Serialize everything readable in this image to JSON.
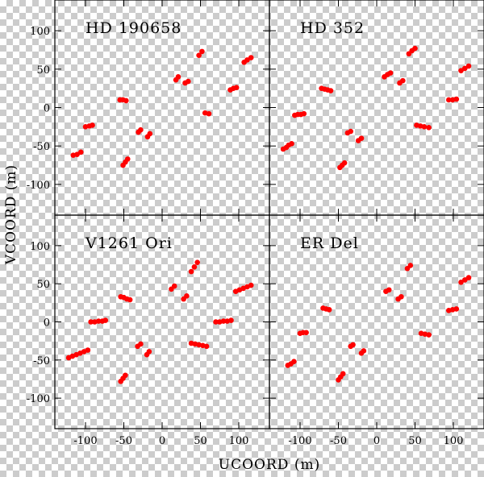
{
  "chart_data": {
    "type": "scatter",
    "xlabel": "UCOORD (m)",
    "ylabel": "VCOORD (m)",
    "xlim": [
      -140,
      140
    ],
    "ylim": [
      -140,
      140
    ],
    "xticks": [
      -100,
      -50,
      0,
      50,
      100
    ],
    "yticks": [
      -100,
      -50,
      0,
      50,
      100
    ],
    "marker_color": "#ff0000",
    "panels": [
      {
        "title": "HD 190658",
        "points": [
          [
            -116,
            -62
          ],
          [
            -111,
            -61
          ],
          [
            -106,
            -58
          ],
          [
            -100,
            -25
          ],
          [
            -95,
            -24
          ],
          [
            -91,
            -23
          ],
          [
            -55,
            10
          ],
          [
            -51,
            10
          ],
          [
            -47,
            9
          ],
          [
            -51,
            -75
          ],
          [
            -48,
            -71
          ],
          [
            -45,
            -67
          ],
          [
            -31,
            -32
          ],
          [
            -28,
            -29
          ],
          [
            -19,
            -38
          ],
          [
            -16,
            -34
          ],
          [
            18,
            36
          ],
          [
            21,
            40
          ],
          [
            30,
            32
          ],
          [
            34,
            34
          ],
          [
            48,
            68
          ],
          [
            52,
            73
          ],
          [
            56,
            -7
          ],
          [
            61,
            -8
          ],
          [
            89,
            23
          ],
          [
            93,
            25
          ],
          [
            97,
            26
          ],
          [
            107,
            59
          ],
          [
            111,
            62
          ],
          [
            116,
            65
          ]
        ]
      },
      {
        "title": "HD 352",
        "points": [
          [
            -122,
            -54
          ],
          [
            -118,
            -52
          ],
          [
            -115,
            -49
          ],
          [
            -111,
            -47
          ],
          [
            -107,
            -10
          ],
          [
            -103,
            -9
          ],
          [
            -99,
            -9
          ],
          [
            -95,
            -8
          ],
          [
            -72,
            25
          ],
          [
            -68,
            24
          ],
          [
            -64,
            23
          ],
          [
            -60,
            22
          ],
          [
            -48,
            -78
          ],
          [
            -45,
            -75
          ],
          [
            -42,
            -72
          ],
          [
            -38,
            -33
          ],
          [
            -34,
            -31
          ],
          [
            -24,
            -43
          ],
          [
            -20,
            -40
          ],
          [
            10,
            40
          ],
          [
            14,
            43
          ],
          [
            18,
            45
          ],
          [
            30,
            32
          ],
          [
            34,
            35
          ],
          [
            42,
            70
          ],
          [
            46,
            74
          ],
          [
            50,
            77
          ],
          [
            52,
            -23
          ],
          [
            57,
            -24
          ],
          [
            62,
            -25
          ],
          [
            68,
            -26
          ],
          [
            94,
            10
          ],
          [
            99,
            10
          ],
          [
            104,
            11
          ],
          [
            110,
            48
          ],
          [
            115,
            51
          ],
          [
            120,
            54
          ]
        ]
      },
      {
        "title": "V1261 Ori",
        "points": [
          [
            -122,
            -47
          ],
          [
            -117,
            -45
          ],
          [
            -112,
            -43
          ],
          [
            -107,
            -41
          ],
          [
            -102,
            -39
          ],
          [
            -97,
            -37
          ],
          [
            -93,
            0
          ],
          [
            -88,
            0
          ],
          [
            -83,
            1
          ],
          [
            -78,
            1
          ],
          [
            -74,
            2
          ],
          [
            -54,
            33
          ],
          [
            -50,
            32
          ],
          [
            -46,
            30
          ],
          [
            -42,
            29
          ],
          [
            -54,
            -78
          ],
          [
            -51,
            -74
          ],
          [
            -48,
            -70
          ],
          [
            -32,
            -32
          ],
          [
            -28,
            -29
          ],
          [
            -20,
            -43
          ],
          [
            -17,
            -39
          ],
          [
            12,
            43
          ],
          [
            16,
            47
          ],
          [
            28,
            30
          ],
          [
            32,
            34
          ],
          [
            38,
            66
          ],
          [
            42,
            72
          ],
          [
            46,
            78
          ],
          [
            38,
            -28
          ],
          [
            43,
            -29
          ],
          [
            48,
            -30
          ],
          [
            53,
            -31
          ],
          [
            58,
            -32
          ],
          [
            70,
            0
          ],
          [
            75,
            0
          ],
          [
            80,
            1
          ],
          [
            85,
            1
          ],
          [
            90,
            2
          ],
          [
            96,
            40
          ],
          [
            101,
            42
          ],
          [
            106,
            44
          ],
          [
            111,
            46
          ],
          [
            116,
            48
          ]
        ]
      },
      {
        "title": "ER Del",
        "points": [
          [
            -116,
            -57
          ],
          [
            -112,
            -55
          ],
          [
            -108,
            -52
          ],
          [
            -100,
            -15
          ],
          [
            -96,
            -14
          ],
          [
            -92,
            -14
          ],
          [
            -70,
            18
          ],
          [
            -66,
            17
          ],
          [
            -62,
            16
          ],
          [
            -50,
            -76
          ],
          [
            -47,
            -72
          ],
          [
            -44,
            -68
          ],
          [
            -34,
            -32
          ],
          [
            -31,
            -30
          ],
          [
            -20,
            -41
          ],
          [
            -17,
            -38
          ],
          [
            12,
            40
          ],
          [
            16,
            42
          ],
          [
            28,
            30
          ],
          [
            32,
            33
          ],
          [
            40,
            70
          ],
          [
            44,
            74
          ],
          [
            58,
            -15
          ],
          [
            63,
            -16
          ],
          [
            68,
            -17
          ],
          [
            94,
            15
          ],
          [
            99,
            16
          ],
          [
            104,
            17
          ],
          [
            110,
            52
          ],
          [
            115,
            55
          ],
          [
            120,
            58
          ]
        ]
      }
    ]
  }
}
